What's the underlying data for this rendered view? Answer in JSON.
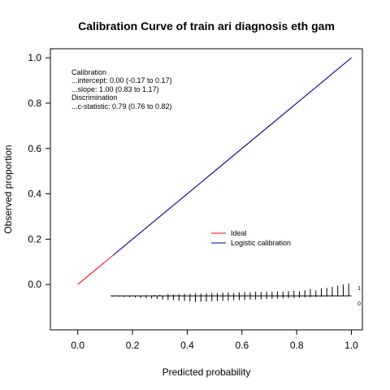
{
  "chart_data": {
    "type": "line",
    "title": "Calibration Curve of train ari diagnosis eth gam",
    "xlabel": "Predicted probability",
    "ylabel": "Observed proportion",
    "xlim": [
      -0.1,
      1.04
    ],
    "ylim": [
      -0.2,
      1.04
    ],
    "x_ticks": [
      0.0,
      0.2,
      0.4,
      0.6,
      0.8,
      1.0
    ],
    "y_ticks": [
      0.0,
      0.2,
      0.4,
      0.6,
      0.8,
      1.0
    ],
    "x_tick_labels": [
      "0.0",
      "0.2",
      "0.4",
      "0.6",
      "0.8",
      "1.0"
    ],
    "y_tick_labels": [
      "0.0",
      "0.2",
      "0.4",
      "0.6",
      "0.8",
      "1.0"
    ],
    "series": [
      {
        "name": "Ideal",
        "color": "#ff0000",
        "x": [
          0.0,
          1.0
        ],
        "y": [
          0.0,
          1.0
        ]
      },
      {
        "name": "Logistic calibration",
        "color": "#0000aa",
        "x": [
          0.13,
          1.0
        ],
        "y": [
          0.13,
          1.0
        ]
      }
    ],
    "annotations": [
      "Calibration",
      "...intercept: 0.00 (-0.17 to 0.17)",
      "...slope: 1.00 (0.83 to 1.17)",
      "Discrimination",
      "...c-statistic: 0.79 (0.76 to 0.82)"
    ],
    "legend_position": "center-right",
    "grid": false,
    "rug": {
      "baseline": -0.05,
      "x_start": 0.12,
      "x_end": 1.0,
      "label_upper": "1",
      "label_lower": "0",
      "upper": [
        [
          0.2,
          0.002
        ],
        [
          0.25,
          0.003
        ],
        [
          0.28,
          0.004
        ],
        [
          0.3,
          0.005
        ],
        [
          0.33,
          0.008
        ],
        [
          0.35,
          0.006
        ],
        [
          0.37,
          0.007
        ],
        [
          0.39,
          0.009
        ],
        [
          0.41,
          0.008
        ],
        [
          0.43,
          0.012
        ],
        [
          0.45,
          0.01
        ],
        [
          0.47,
          0.011
        ],
        [
          0.49,
          0.013
        ],
        [
          0.51,
          0.012
        ],
        [
          0.53,
          0.014
        ],
        [
          0.55,
          0.015
        ],
        [
          0.57,
          0.013
        ],
        [
          0.59,
          0.016
        ],
        [
          0.61,
          0.017
        ],
        [
          0.63,
          0.015
        ],
        [
          0.65,
          0.018
        ],
        [
          0.67,
          0.017
        ],
        [
          0.69,
          0.019
        ],
        [
          0.71,
          0.018
        ],
        [
          0.73,
          0.02
        ],
        [
          0.75,
          0.019
        ],
        [
          0.77,
          0.021
        ],
        [
          0.79,
          0.022
        ],
        [
          0.81,
          0.02
        ],
        [
          0.83,
          0.025
        ],
        [
          0.85,
          0.03
        ],
        [
          0.87,
          0.024
        ],
        [
          0.89,
          0.033
        ],
        [
          0.91,
          0.035
        ],
        [
          0.93,
          0.04
        ],
        [
          0.95,
          0.045
        ],
        [
          0.97,
          0.05
        ],
        [
          0.99,
          0.055
        ]
      ],
      "lower": [
        [
          0.13,
          0.003
        ],
        [
          0.15,
          0.004
        ],
        [
          0.17,
          0.005
        ],
        [
          0.19,
          0.006
        ],
        [
          0.21,
          0.008
        ],
        [
          0.23,
          0.009
        ],
        [
          0.25,
          0.01
        ],
        [
          0.27,
          0.012
        ],
        [
          0.29,
          0.014
        ],
        [
          0.31,
          0.016
        ],
        [
          0.33,
          0.018
        ],
        [
          0.35,
          0.02
        ],
        [
          0.37,
          0.022
        ],
        [
          0.39,
          0.023
        ],
        [
          0.41,
          0.025
        ],
        [
          0.43,
          0.027
        ],
        [
          0.45,
          0.026
        ],
        [
          0.47,
          0.025
        ],
        [
          0.49,
          0.024
        ],
        [
          0.51,
          0.023
        ],
        [
          0.53,
          0.022
        ],
        [
          0.55,
          0.021
        ],
        [
          0.57,
          0.02
        ],
        [
          0.59,
          0.019
        ],
        [
          0.61,
          0.018
        ],
        [
          0.63,
          0.017
        ],
        [
          0.65,
          0.016
        ],
        [
          0.67,
          0.015
        ],
        [
          0.69,
          0.014
        ],
        [
          0.71,
          0.013
        ],
        [
          0.73,
          0.012
        ],
        [
          0.75,
          0.011
        ],
        [
          0.77,
          0.01
        ],
        [
          0.79,
          0.009
        ],
        [
          0.81,
          0.008
        ],
        [
          0.83,
          0.007
        ],
        [
          0.85,
          0.006
        ],
        [
          0.87,
          0.005
        ],
        [
          0.89,
          0.004
        ],
        [
          0.91,
          0.003
        ],
        [
          0.93,
          0.003
        ],
        [
          0.95,
          0.002
        ],
        [
          0.97,
          0.002
        ],
        [
          0.99,
          0.001
        ]
      ]
    }
  }
}
